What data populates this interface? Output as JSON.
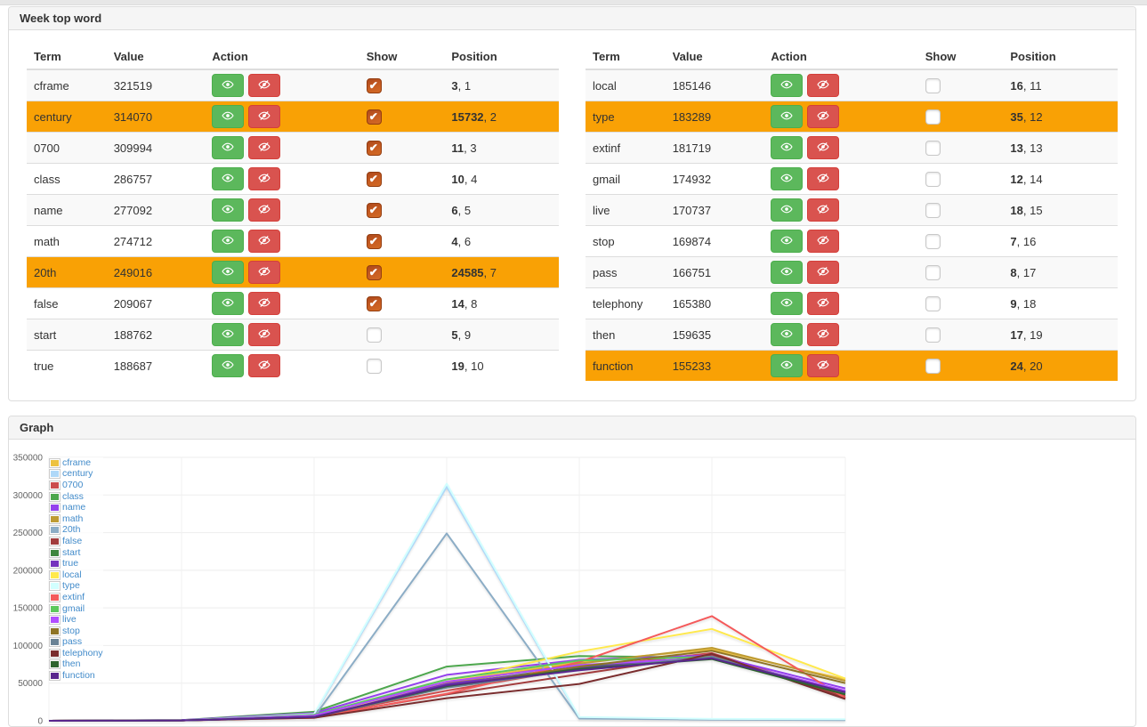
{
  "page": {
    "top_strip_color": "#e7e7e7"
  },
  "panels": {
    "words": {
      "title": "Week top word"
    },
    "graph": {
      "title": "Graph"
    }
  },
  "table_columns": [
    "Term",
    "Value",
    "Action",
    "Show",
    "Position"
  ],
  "action_icons": {
    "show": "eye-icon",
    "hide": "eye-slash-icon"
  },
  "colors": {
    "highlight_row": "#f9a105",
    "striped_row": "#f9f9f9",
    "show_button": "#5cb85c",
    "hide_button": "#d9534f",
    "checked_checkbox": "#c85d21",
    "panel_header_bg": "#f5f5f5",
    "legend_label": "#428bca"
  },
  "tables": {
    "left": {
      "rows": [
        {
          "term": "cframe",
          "value": "321519",
          "position": "3",
          "rank": "1",
          "checked": true,
          "highlighted": false
        },
        {
          "term": "century",
          "value": "314070",
          "position": "15732",
          "rank": "2",
          "checked": true,
          "highlighted": true
        },
        {
          "term": "0700",
          "value": "309994",
          "position": "11",
          "rank": "3",
          "checked": true,
          "highlighted": false
        },
        {
          "term": "class",
          "value": "286757",
          "position": "10",
          "rank": "4",
          "checked": true,
          "highlighted": false
        },
        {
          "term": "name",
          "value": "277092",
          "position": "6",
          "rank": "5",
          "checked": true,
          "highlighted": false
        },
        {
          "term": "math",
          "value": "274712",
          "position": "4",
          "rank": "6",
          "checked": true,
          "highlighted": false
        },
        {
          "term": "20th",
          "value": "249016",
          "position": "24585",
          "rank": "7",
          "checked": true,
          "highlighted": true
        },
        {
          "term": "false",
          "value": "209067",
          "position": "14",
          "rank": "8",
          "checked": true,
          "highlighted": false
        },
        {
          "term": "start",
          "value": "188762",
          "position": "5",
          "rank": "9",
          "checked": false,
          "highlighted": false
        },
        {
          "term": "true",
          "value": "188687",
          "position": "19",
          "rank": "10",
          "checked": false,
          "highlighted": false
        }
      ]
    },
    "right": {
      "rows": [
        {
          "term": "local",
          "value": "185146",
          "position": "16",
          "rank": "11",
          "checked": false,
          "highlighted": false
        },
        {
          "term": "type",
          "value": "183289",
          "position": "35",
          "rank": "12",
          "checked": false,
          "highlighted": true
        },
        {
          "term": "extinf",
          "value": "181719",
          "position": "13",
          "rank": "13",
          "checked": false,
          "highlighted": false
        },
        {
          "term": "gmail",
          "value": "174932",
          "position": "12",
          "rank": "14",
          "checked": false,
          "highlighted": false
        },
        {
          "term": "live",
          "value": "170737",
          "position": "18",
          "rank": "15",
          "checked": false,
          "highlighted": false
        },
        {
          "term": "stop",
          "value": "169874",
          "position": "7",
          "rank": "16",
          "checked": false,
          "highlighted": false
        },
        {
          "term": "pass",
          "value": "166751",
          "position": "8",
          "rank": "17",
          "checked": false,
          "highlighted": false
        },
        {
          "term": "telephony",
          "value": "165380",
          "position": "9",
          "rank": "18",
          "checked": false,
          "highlighted": false
        },
        {
          "term": "then",
          "value": "159635",
          "position": "17",
          "rank": "19",
          "checked": false,
          "highlighted": false
        },
        {
          "term": "function",
          "value": "155233",
          "position": "24",
          "rank": "20",
          "checked": false,
          "highlighted": true
        }
      ]
    }
  },
  "chart_data": {
    "type": "line",
    "title": "",
    "xlabel": "",
    "ylabel": "",
    "x": [
      1,
      2,
      3,
      4,
      5,
      6,
      7
    ],
    "ylim": [
      0,
      350000
    ],
    "yticks": [
      0,
      50000,
      100000,
      150000,
      200000,
      250000,
      300000,
      350000
    ],
    "ytick_labels": [
      "0",
      "50000",
      "100000",
      "150000",
      "200000",
      "250000",
      "300000",
      "350000"
    ],
    "grid": true,
    "legend_position": "top-left",
    "series": [
      {
        "name": "cframe",
        "color": "#edc240",
        "values": [
          0,
          500,
          5000,
          52000,
          78000,
          95000,
          55000
        ]
      },
      {
        "name": "century",
        "color": "#afd8f8",
        "values": [
          0,
          500,
          8000,
          311000,
          4000,
          2000,
          1500
        ]
      },
      {
        "name": "0700",
        "color": "#cb4b4c",
        "values": [
          0,
          500,
          6000,
          40000,
          70000,
          90000,
          33000
        ]
      },
      {
        "name": "class",
        "color": "#4da74d",
        "values": [
          0,
          1000,
          12000,
          72000,
          86000,
          84000,
          38000
        ]
      },
      {
        "name": "name",
        "color": "#9440ed",
        "values": [
          0,
          1000,
          10000,
          61000,
          81000,
          87000,
          43000
        ]
      },
      {
        "name": "math",
        "color": "#be9b33",
        "values": [
          0,
          500,
          6000,
          50000,
          76000,
          97000,
          53000
        ]
      },
      {
        "name": "20th",
        "color": "#8cadc6",
        "values": [
          0,
          500,
          5000,
          249000,
          3000,
          1500,
          1000
        ]
      },
      {
        "name": "false",
        "color": "#a23c3d",
        "values": [
          0,
          500,
          5000,
          35000,
          62000,
          88000,
          31000
        ]
      },
      {
        "name": "start",
        "color": "#3e863e",
        "values": [
          0,
          500,
          6000,
          48000,
          72000,
          83000,
          36000
        ]
      },
      {
        "name": "true",
        "color": "#7633be",
        "values": [
          0,
          500,
          6000,
          49000,
          70000,
          84000,
          39000
        ]
      },
      {
        "name": "local",
        "color": "#ffe94d",
        "values": [
          0,
          500,
          6000,
          52000,
          92000,
          122000,
          56000
        ]
      },
      {
        "name": "type",
        "color": "#d2ffff",
        "values": [
          0,
          500,
          9000,
          315000,
          5000,
          2500,
          2000
        ]
      },
      {
        "name": "extinf",
        "color": "#f45a5b",
        "values": [
          0,
          500,
          4000,
          36000,
          78000,
          139000,
          30000
        ]
      },
      {
        "name": "gmail",
        "color": "#5cc85c",
        "values": [
          0,
          500,
          8000,
          55000,
          80000,
          85000,
          37000
        ]
      },
      {
        "name": "live",
        "color": "#b14dff",
        "values": [
          0,
          500,
          7000,
          52000,
          74000,
          84000,
          40000
        ]
      },
      {
        "name": "stop",
        "color": "#8e7426",
        "values": [
          0,
          500,
          5000,
          45000,
          72000,
          93000,
          50000
        ]
      },
      {
        "name": "pass",
        "color": "#698295",
        "values": [
          0,
          500,
          5000,
          44000,
          68000,
          85000,
          37000
        ]
      },
      {
        "name": "telephony",
        "color": "#7a2d2e",
        "values": [
          0,
          500,
          4000,
          30000,
          49000,
          89000,
          29000
        ]
      },
      {
        "name": "then",
        "color": "#2e642e",
        "values": [
          0,
          500,
          5000,
          46000,
          69000,
          82000,
          35000
        ]
      },
      {
        "name": "function",
        "color": "#59268e",
        "values": [
          0,
          500,
          5000,
          47000,
          67000,
          83000,
          38000
        ]
      }
    ]
  }
}
